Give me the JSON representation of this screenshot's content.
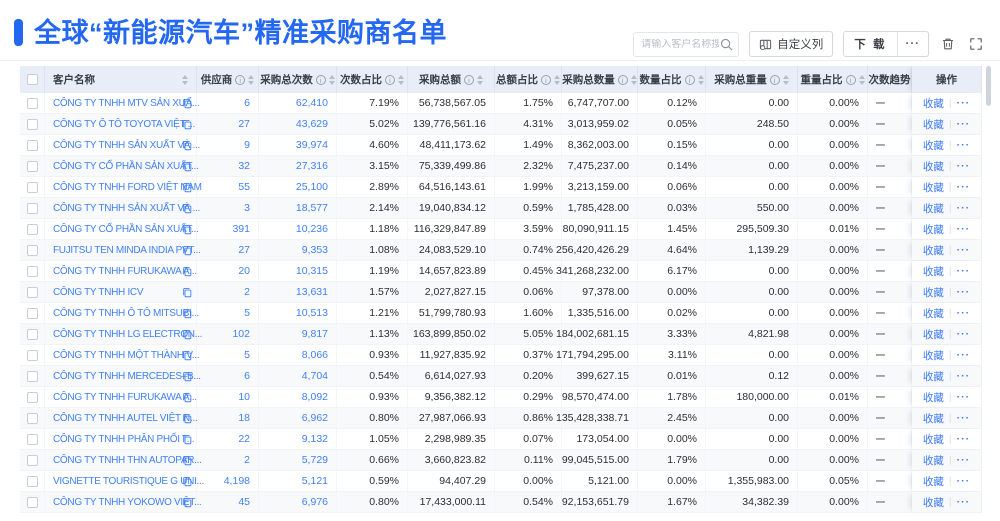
{
  "page": {
    "title": "全球“新能源汽车”精准采购商名单"
  },
  "toolbar": {
    "search_placeholder": "请输入客户名称搜索",
    "customize_columns_label": "自定义列",
    "download_label": "下 载",
    "more_label": "···"
  },
  "table": {
    "columns": [
      {
        "label": "客户名称",
        "info": false,
        "sort": true
      },
      {
        "label": "供应商",
        "info": true,
        "sort": true
      },
      {
        "label": "采购总次数",
        "info": true,
        "sort": true
      },
      {
        "label": "次数占比",
        "info": true,
        "sort": true
      },
      {
        "label": "采购总额",
        "info": true,
        "sort": true
      },
      {
        "label": "总额占比",
        "info": true,
        "sort": true
      },
      {
        "label": "采购总数量",
        "info": true,
        "sort": true
      },
      {
        "label": "数量占比",
        "info": true,
        "sort": true
      },
      {
        "label": "采购总重量",
        "info": true,
        "sort": true
      },
      {
        "label": "重量占比",
        "info": true,
        "sort": true
      },
      {
        "label": "次数趋势",
        "info": false,
        "sort": false
      },
      {
        "label": "操作",
        "info": false,
        "sort": false
      }
    ],
    "action": {
      "favorite": "收藏",
      "more": "···"
    },
    "rows": [
      {
        "name": "CÔNG TY TNHH MTV SẢN XUẤ...",
        "values": [
          "6",
          "62,410",
          "7.19%",
          "56,738,567.05",
          "1.75%",
          "6,747,707.00",
          "0.12%",
          "0.00",
          "0.00%",
          "–"
        ]
      },
      {
        "name": "CÔNG TY Ô TÔ TOYOTA VIỆT ...",
        "values": [
          "27",
          "43,629",
          "5.02%",
          "139,776,561.16",
          "4.31%",
          "3,013,959.02",
          "0.05%",
          "248.50",
          "0.00%",
          "–"
        ]
      },
      {
        "name": "CÔNG TY TNHH SẢN XUẤT VÀ ...",
        "values": [
          "9",
          "39,974",
          "4.60%",
          "48,411,173.62",
          "1.49%",
          "8,362,003.00",
          "0.15%",
          "0.00",
          "0.00%",
          "–"
        ]
      },
      {
        "name": "CÔNG TY CỔ PHẦN SẢN XUẤT...",
        "values": [
          "32",
          "27,316",
          "3.15%",
          "75,339,499.86",
          "2.32%",
          "7,475,237.00",
          "0.14%",
          "0.00",
          "0.00%",
          "–"
        ]
      },
      {
        "name": "CÔNG TY TNHH FORD VIỆT NAM",
        "values": [
          "55",
          "25,100",
          "2.89%",
          "64,516,143.61",
          "1.99%",
          "3,213,159.00",
          "0.06%",
          "0.00",
          "0.00%",
          "–"
        ]
      },
      {
        "name": "CÔNG TY TNHH SẢN XUẤT VÀ ...",
        "values": [
          "3",
          "18,577",
          "2.14%",
          "19,040,834.12",
          "0.59%",
          "1,785,428.00",
          "0.03%",
          "550.00",
          "0.00%",
          "–"
        ]
      },
      {
        "name": "CÔNG TY CỔ PHẦN SẢN XUẤT...",
        "values": [
          "391",
          "10,236",
          "1.18%",
          "116,329,847.89",
          "3.59%",
          "80,090,911.15",
          "1.45%",
          "295,509.30",
          "0.01%",
          "–"
        ]
      },
      {
        "name": "FUJITSU TEN MINDA INDIA PVT...",
        "values": [
          "27",
          "9,353",
          "1.08%",
          "24,083,529.10",
          "0.74%",
          "256,420,426.29",
          "4.64%",
          "1,139.29",
          "0.00%",
          "–"
        ]
      },
      {
        "name": "CÔNG TY TNHH FURUKAWA A...",
        "values": [
          "20",
          "10,315",
          "1.19%",
          "14,657,823.89",
          "0.45%",
          "341,268,232.00",
          "6.17%",
          "0.00",
          "0.00%",
          "–"
        ]
      },
      {
        "name": "CÔNG TY TNHH ICV",
        "values": [
          "2",
          "13,631",
          "1.57%",
          "2,027,827.15",
          "0.06%",
          "97,378.00",
          "0.00%",
          "0.00",
          "0.00%",
          "–"
        ]
      },
      {
        "name": "CÔNG TY TNHH Ô TÔ MITSUBI...",
        "values": [
          "5",
          "10,513",
          "1.21%",
          "51,799,780.93",
          "1.60%",
          "1,335,516.00",
          "0.02%",
          "0.00",
          "0.00%",
          "–"
        ]
      },
      {
        "name": "CÔNG TY TNHH LG ELECTRON...",
        "values": [
          "102",
          "9,817",
          "1.13%",
          "163,899,850.02",
          "5.05%",
          "184,002,681.15",
          "3.33%",
          "4,821.98",
          "0.00%",
          "–"
        ]
      },
      {
        "name": "CÔNG TY TNHH MỘT THÀNH V...",
        "values": [
          "5",
          "8,066",
          "0.93%",
          "11,927,835.92",
          "0.37%",
          "171,794,295.00",
          "3.11%",
          "0.00",
          "0.00%",
          "–"
        ]
      },
      {
        "name": "CÔNG TY TNHH MERCEDES–B...",
        "values": [
          "6",
          "4,704",
          "0.54%",
          "6,614,027.93",
          "0.20%",
          "399,627.15",
          "0.01%",
          "0.12",
          "0.00%",
          "–"
        ]
      },
      {
        "name": "CÔNG TY TNHH FURUKAWA A...",
        "values": [
          "10",
          "8,092",
          "0.93%",
          "9,356,382.12",
          "0.29%",
          "98,570,474.00",
          "1.78%",
          "180,000.00",
          "0.01%",
          "–"
        ]
      },
      {
        "name": "CÔNG TY TNHH AUTEL VIỆT N...",
        "values": [
          "18",
          "6,962",
          "0.80%",
          "27,987,066.93",
          "0.86%",
          "135,428,338.71",
          "2.45%",
          "0.00",
          "0.00%",
          "–"
        ]
      },
      {
        "name": "CÔNG TY TNHH PHÂN PHỐI T...",
        "values": [
          "22",
          "9,132",
          "1.05%",
          "2,298,989.35",
          "0.07%",
          "173,054.00",
          "0.00%",
          "0.00",
          "0.00%",
          "–"
        ]
      },
      {
        "name": "CÔNG TY TNHH THN AUTOPAR...",
        "values": [
          "2",
          "5,729",
          "0.66%",
          "3,660,823.82",
          "0.11%",
          "99,045,515.00",
          "1.79%",
          "0.00",
          "0.00%",
          "–"
        ]
      },
      {
        "name": "VIGNETTE TOURISTIQUE G UNI...",
        "values": [
          "4,198",
          "5,121",
          "0.59%",
          "94,407.29",
          "0.00%",
          "5,121.00",
          "0.00%",
          "1,355,983.00",
          "0.05%",
          "–"
        ]
      },
      {
        "name": "CÔNG TY TNHH YOKOWO VIỆT...",
        "values": [
          "45",
          "6,976",
          "0.80%",
          "17,433,000.11",
          "0.54%",
          "92,153,651.79",
          "1.67%",
          "34,382.39",
          "0.00%",
          "–"
        ]
      }
    ]
  },
  "colors": {
    "accent": "#2468f2",
    "link": "#4080f8",
    "header_bg": "#e9edf8"
  }
}
